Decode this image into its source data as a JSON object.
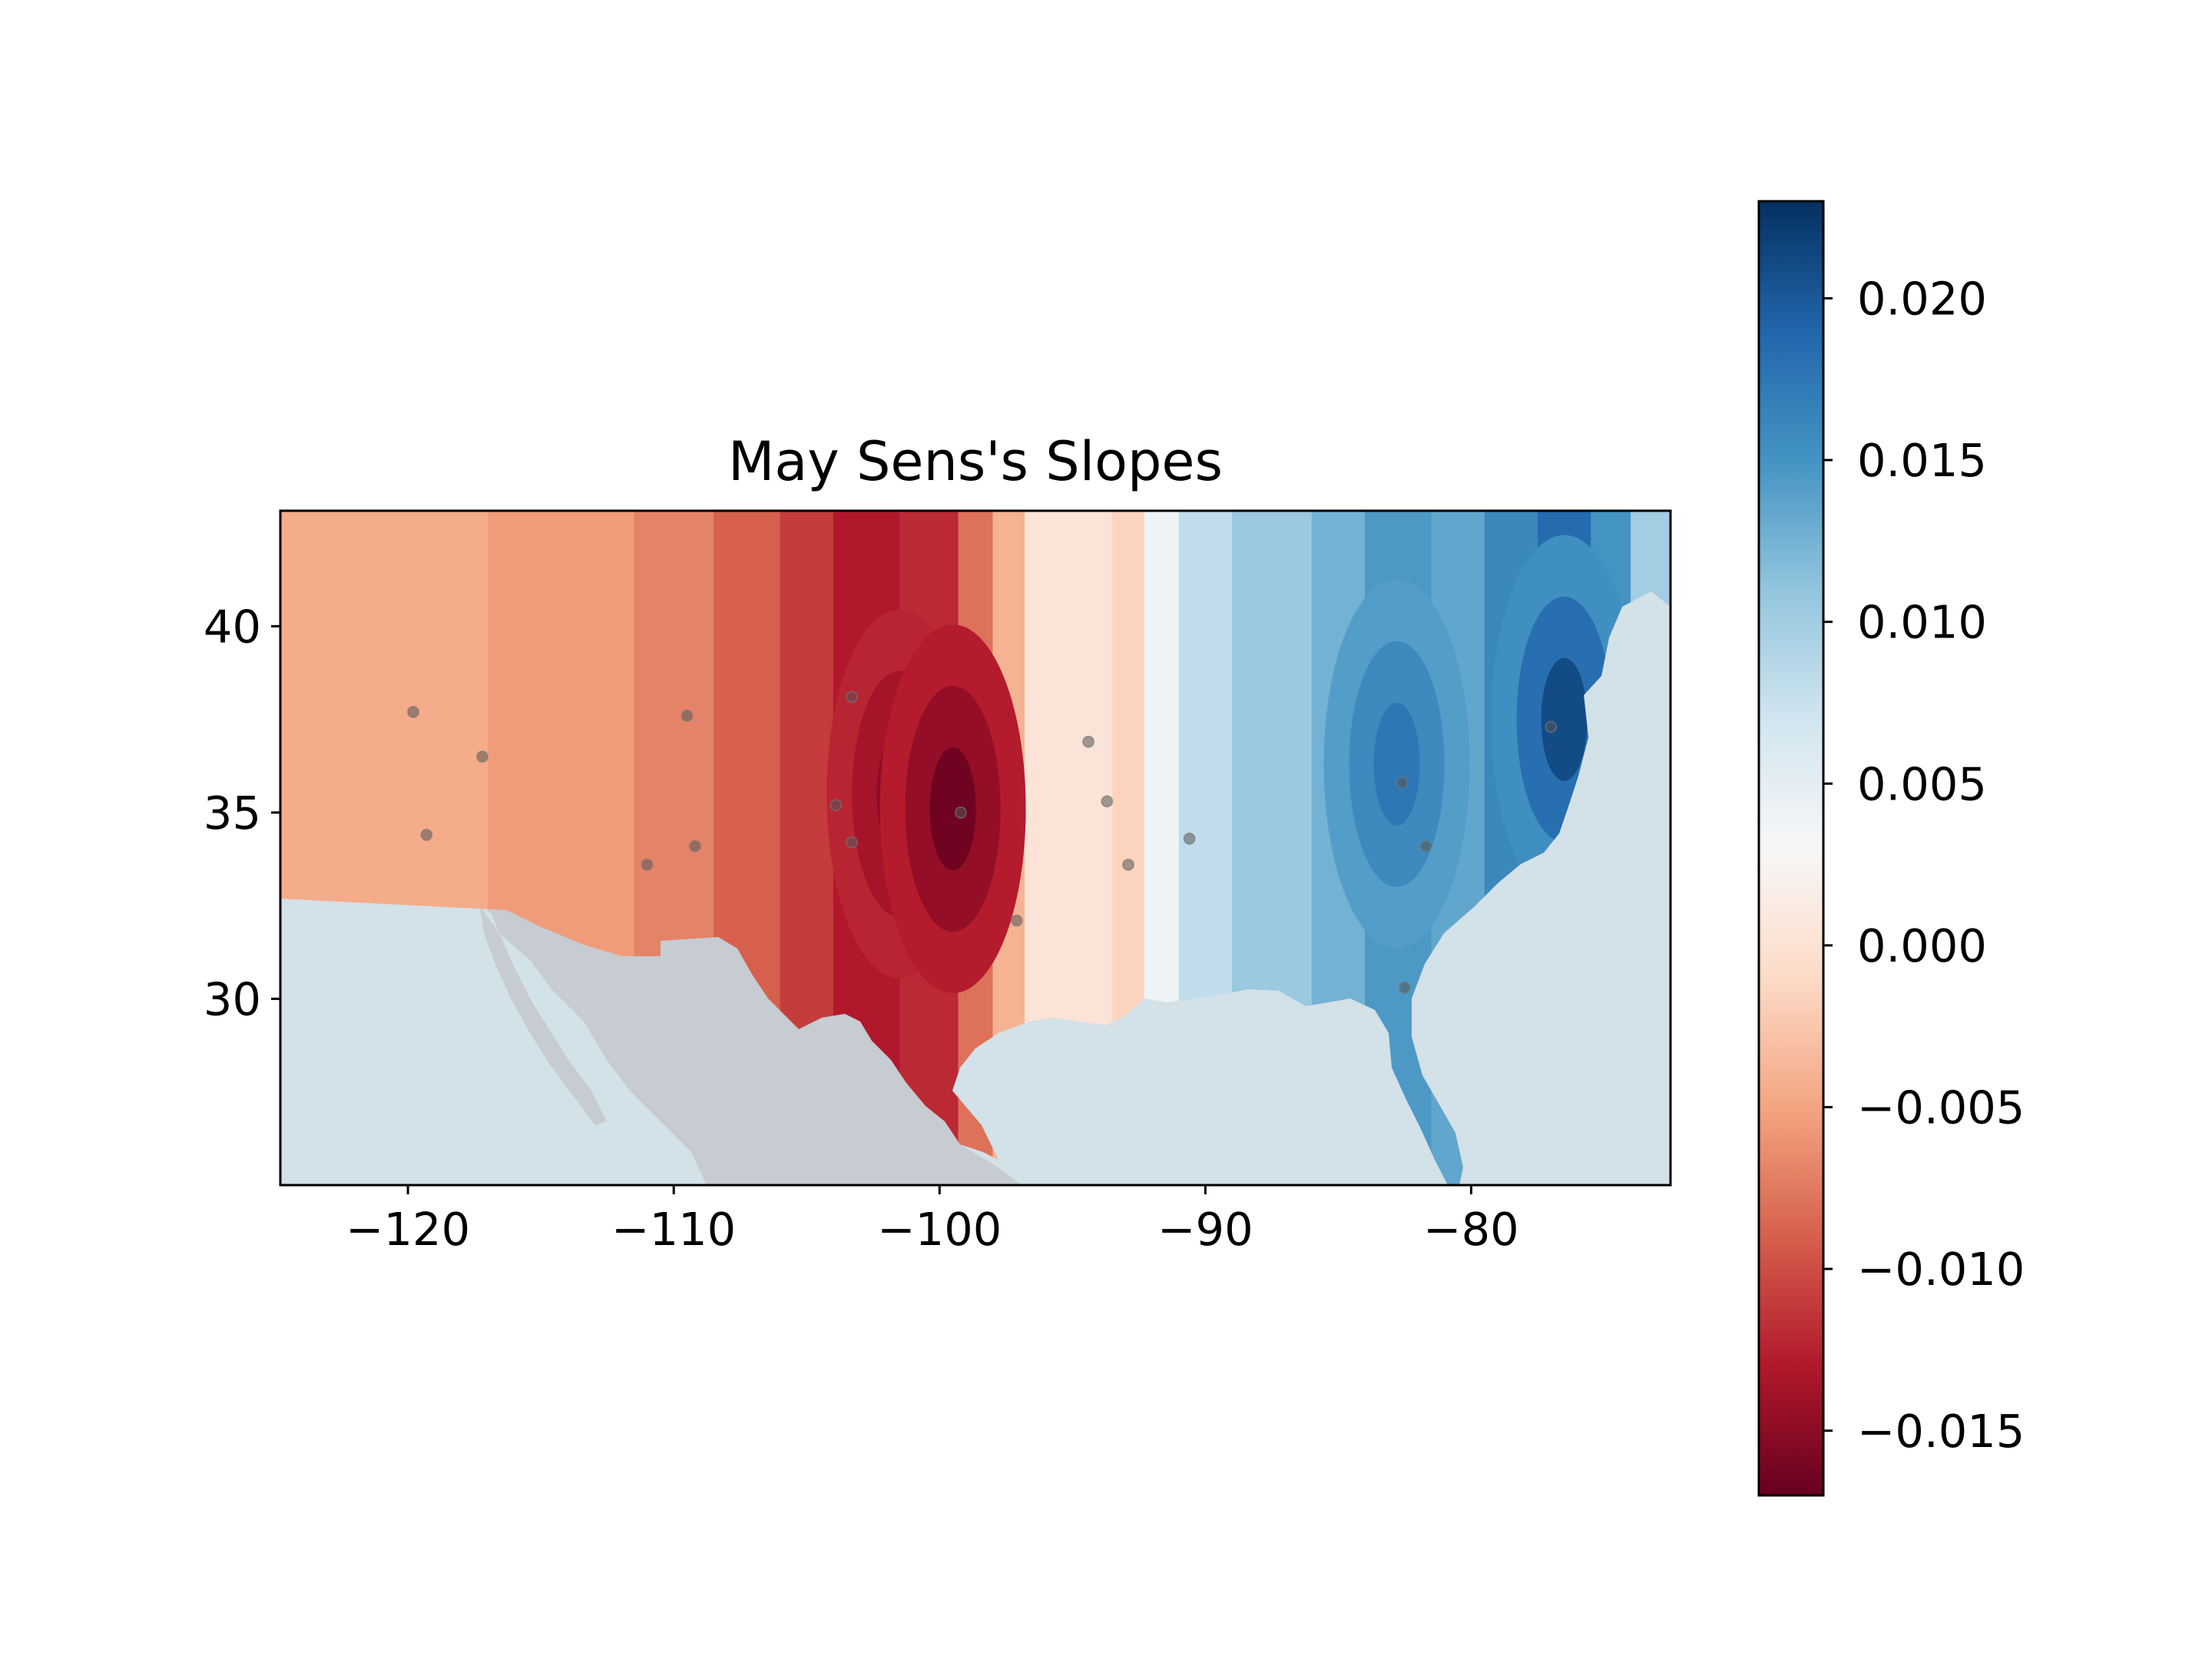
{
  "chart_data": {
    "type": "contour-map",
    "title": "May Sens's Slopes",
    "xlabel": "",
    "ylabel": "",
    "xlim": [
      -124.8,
      -72.5
    ],
    "ylim": [
      25.0,
      43.1
    ],
    "x_ticks": [
      -120,
      -110,
      -100,
      -90,
      -80
    ],
    "x_tick_labels": [
      "−120",
      "−110",
      "−100",
      "−90",
      "−80"
    ],
    "y_ticks": [
      30,
      35,
      40
    ],
    "y_tick_labels": [
      "30",
      "35",
      "40"
    ],
    "colormap": "RdBu",
    "colorbar": {
      "range": [
        -0.017,
        0.023
      ],
      "ticks": [
        0.02,
        0.015,
        0.01,
        0.005,
        0.0,
        -0.005,
        -0.01,
        -0.015
      ],
      "tick_labels": [
        "0.020",
        "0.015",
        "0.010",
        "0.005",
        "0.000",
        "−0.005",
        "−0.010",
        "−0.015"
      ],
      "colors": [
        "#67001f",
        "#b2182b",
        "#d6604d",
        "#f4a582",
        "#fddbc7",
        "#f7f7f7",
        "#d1e5f0",
        "#92c5de",
        "#4393c3",
        "#2166ac",
        "#053061"
      ]
    },
    "contour_bands": [
      {
        "x_from": -124.8,
        "x_to": -117.0,
        "value": -0.0045
      },
      {
        "x_from": -117.0,
        "x_to": -111.5,
        "value": -0.0055
      },
      {
        "x_from": -111.5,
        "x_to": -108.5,
        "value": -0.007
      },
      {
        "x_from": -108.5,
        "x_to": -106.0,
        "value": -0.009
      },
      {
        "x_from": -106.0,
        "x_to": -104.0,
        "value": -0.011
      },
      {
        "x_from": -104.0,
        "x_to": -101.5,
        "value": -0.013
      },
      {
        "x_from": -101.5,
        "x_to": -99.3,
        "value": -0.012
      },
      {
        "x_from": -99.3,
        "x_to": -98.0,
        "value": -0.008
      },
      {
        "x_from": -98.0,
        "x_to": -96.8,
        "value": -0.004
      },
      {
        "x_from": -96.8,
        "x_to": -93.5,
        "value": 0.0003
      },
      {
        "x_from": -93.5,
        "x_to": -92.3,
        "value": -0.0015
      },
      {
        "x_from": -92.3,
        "x_to": -91.0,
        "value": 0.004
      },
      {
        "x_from": -91.0,
        "x_to": -89.0,
        "value": 0.008
      },
      {
        "x_from": -89.0,
        "x_to": -86.0,
        "value": 0.0105
      },
      {
        "x_from": -86.0,
        "x_to": -84.0,
        "value": 0.0125
      },
      {
        "x_from": -84.0,
        "x_to": -81.5,
        "value": 0.0145
      },
      {
        "x_from": -81.5,
        "x_to": -79.5,
        "value": 0.0135
      },
      {
        "x_from": -79.5,
        "x_to": -77.5,
        "value": 0.016
      },
      {
        "x_from": -77.5,
        "x_to": -75.5,
        "value": 0.0185
      },
      {
        "x_from": -75.5,
        "x_to": -74.0,
        "value": 0.015
      },
      {
        "x_from": -74.0,
        "x_to": -72.5,
        "value": 0.01
      }
    ],
    "contour_centers": [
      {
        "lon": -101.5,
        "lat": 35.5,
        "value": -0.015
      },
      {
        "lon": -99.5,
        "lat": 35.1,
        "value": -0.0165
      },
      {
        "lon": -82.8,
        "lat": 36.3,
        "value": 0.0175
      },
      {
        "lon": -76.5,
        "lat": 37.5,
        "value": 0.021
      }
    ],
    "stations": [
      {
        "lon": -119.8,
        "lat": 37.7
      },
      {
        "lon": -117.2,
        "lat": 36.5
      },
      {
        "lon": -119.3,
        "lat": 34.4
      },
      {
        "lon": -109.5,
        "lat": 37.6
      },
      {
        "lon": -111.0,
        "lat": 33.6
      },
      {
        "lon": -109.2,
        "lat": 34.1
      },
      {
        "lon": -103.3,
        "lat": 38.1
      },
      {
        "lon": -103.9,
        "lat": 35.2
      },
      {
        "lon": -103.3,
        "lat": 34.2
      },
      {
        "lon": -99.2,
        "lat": 35.0
      },
      {
        "lon": -97.1,
        "lat": 32.1
      },
      {
        "lon": -94.4,
        "lat": 36.9
      },
      {
        "lon": -93.7,
        "lat": 35.3
      },
      {
        "lon": -92.9,
        "lat": 33.6
      },
      {
        "lon": -90.6,
        "lat": 34.3
      },
      {
        "lon": -82.6,
        "lat": 35.8
      },
      {
        "lon": -81.7,
        "lat": 34.1
      },
      {
        "lon": -82.5,
        "lat": 30.3
      },
      {
        "lon": -77.0,
        "lat": 37.3
      }
    ],
    "grid": false,
    "legend": "colorbar-right"
  }
}
